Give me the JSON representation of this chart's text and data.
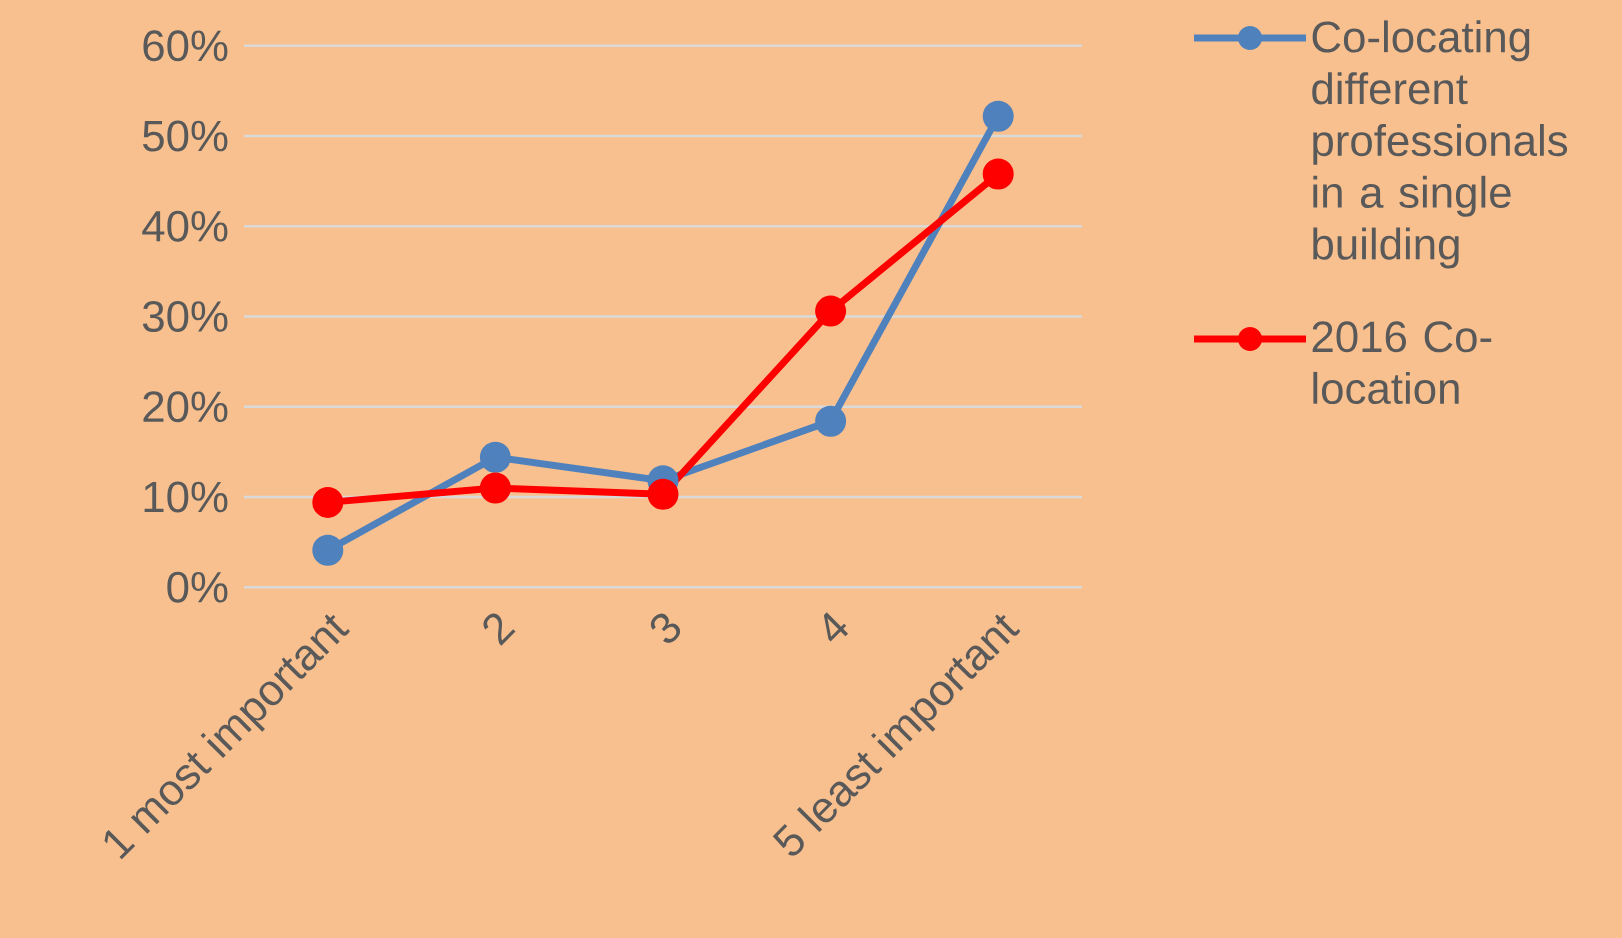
{
  "chart_data": {
    "type": "line",
    "categories": [
      "1 most important",
      "2",
      "3",
      "4",
      "5 least important"
    ],
    "series": [
      {
        "name": "Co-locating different professionals in a single building",
        "color": "#4f81bd",
        "values": [
          4.1,
          14.4,
          11.8,
          18.4,
          52.2
        ]
      },
      {
        "name": "2016 Co-location",
        "color": "#ff0000",
        "values": [
          9.4,
          11.0,
          10.3,
          30.6,
          45.8
        ]
      }
    ],
    "ylim": [
      0,
      60
    ],
    "yticks": [
      {
        "value": 0,
        "label": "0%"
      },
      {
        "value": 10,
        "label": "10%"
      },
      {
        "value": 20,
        "label": "20%"
      },
      {
        "value": 30,
        "label": "30%"
      },
      {
        "value": 40,
        "label": "40%"
      },
      {
        "value": 50,
        "label": "50%"
      },
      {
        "value": 60,
        "label": "60%"
      }
    ],
    "grid": "y",
    "legend": "right",
    "marker": "circle",
    "line_style": "solid"
  }
}
